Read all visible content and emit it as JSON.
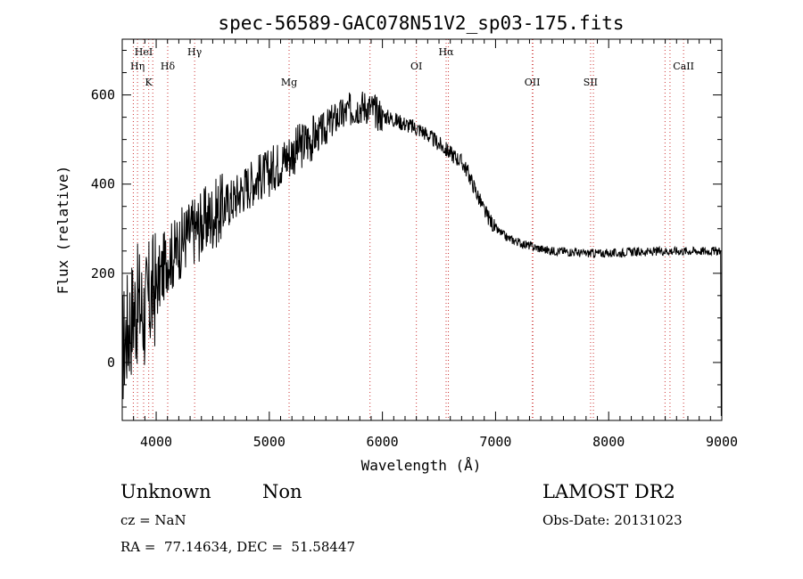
{
  "chart_data": {
    "type": "line",
    "title": "spec-56589-GAC078N51V2_sp03-175.fits",
    "xlabel": "Wavelength (Å)",
    "ylabel": "Flux (relative)",
    "xlim": [
      3700,
      9000
    ],
    "ylim": [
      -130,
      725
    ],
    "x_ticks": [
      4000,
      5000,
      6000,
      7000,
      8000,
      9000
    ],
    "x_tick_labels": [
      "4000",
      "5000",
      "6000",
      "7000",
      "8000",
      "9000"
    ],
    "y_ticks": [
      0,
      200,
      400,
      600
    ],
    "y_tick_labels": [
      "0",
      "200",
      "400",
      "600"
    ],
    "grid": false,
    "line_color": "#000000",
    "marker_color": "#cc3333",
    "lines": [
      {
        "label": "HeI",
        "wavelength": 3889,
        "row": 1
      },
      {
        "label": "Hη",
        "wavelength": 3835,
        "row": 2
      },
      {
        "label": "K",
        "wavelength": 3934,
        "row": 3
      },
      {
        "label": "Hδ",
        "wavelength": 4102,
        "row": 2
      },
      {
        "label": "Hγ",
        "wavelength": 4340,
        "row": 1
      },
      {
        "label": "Mg",
        "wavelength": 5175,
        "row": 3
      },
      {
        "label": "OI",
        "wavelength": 6300,
        "row": 2
      },
      {
        "label": "Hα",
        "wavelength": 6563,
        "row": 1
      },
      {
        "label": "OII",
        "wavelength": 7325,
        "row": 3
      },
      {
        "label": "SII",
        "wavelength": 7840,
        "row": 3
      },
      {
        "label": "CaII",
        "wavelength": 8662,
        "row": 2
      }
    ],
    "extra_marker_wavelengths": [
      3798,
      3970,
      5890,
      6583,
      7330,
      7865,
      8498,
      8542
    ],
    "series": [
      {
        "x": [
          3700,
          3750,
          3800,
          3850,
          3900,
          3950,
          4000,
          4050,
          4100,
          4150,
          4200,
          4250,
          4300,
          4350,
          4400,
          4450,
          4500,
          4550,
          4600,
          4650,
          4700,
          4750,
          4800,
          4850,
          4900,
          4950,
          5000,
          5050,
          5100,
          5150,
          5200,
          5250,
          5300,
          5350,
          5400,
          5450,
          5500,
          5550,
          5600,
          5650,
          5700,
          5750,
          5800,
          5850,
          5900,
          5950,
          6000,
          6050,
          6100,
          6150,
          6200,
          6250,
          6300,
          6350,
          6400,
          6450,
          6500,
          6550,
          6600,
          6650,
          6700,
          6750,
          6800,
          6850,
          6900,
          6950,
          7000,
          7050,
          7100,
          7150,
          7200,
          7250,
          7300,
          7350,
          7400,
          7450,
          7500,
          7550,
          7600,
          7650,
          7700,
          7750,
          7800,
          7850,
          7900,
          7950,
          8000,
          8050,
          8100,
          8150,
          8200,
          8250,
          8300,
          8350,
          8400,
          8450,
          8500,
          8550,
          8600,
          8650,
          8700,
          8750,
          8800,
          8850,
          8900,
          8950,
          8980
        ],
        "y": [
          30,
          80,
          120,
          130,
          110,
          150,
          170,
          200,
          240,
          240,
          260,
          280,
          290,
          300,
          310,
          320,
          330,
          340,
          350,
          360,
          370,
          385,
          395,
          405,
          415,
          420,
          425,
          440,
          450,
          460,
          470,
          480,
          490,
          500,
          505,
          515,
          525,
          540,
          550,
          555,
          565,
          570,
          575,
          575,
          570,
          560,
          555,
          550,
          545,
          540,
          535,
          530,
          525,
          520,
          510,
          500,
          490,
          480,
          470,
          460,
          450,
          430,
          400,
          370,
          340,
          320,
          300,
          290,
          280,
          275,
          270,
          265,
          262,
          258,
          255,
          252,
          250,
          250,
          250,
          248,
          248,
          245,
          245,
          245,
          245,
          245,
          245,
          245,
          245,
          248,
          248,
          248,
          248,
          248,
          248,
          250,
          250,
          250,
          250,
          250,
          250,
          250,
          250,
          250,
          250,
          250,
          250
        ]
      }
    ]
  },
  "info": {
    "object_class": "Unknown",
    "object_subclass": "Non",
    "survey": "LAMOST DR2",
    "cz": "cz = NaN",
    "obs_date": "Obs-Date: 20131023",
    "coords": "RA =  77.14634, DEC =  51.58447"
  }
}
